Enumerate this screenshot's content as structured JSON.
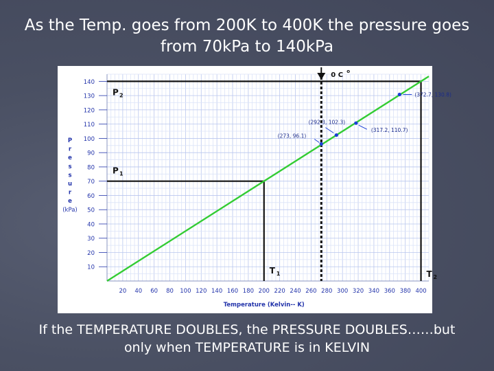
{
  "slide": {
    "title_line1": "As the Temp. goes from 200K to 400K the pressure goes",
    "title_line2": "from 70kPa to 140kPa",
    "caption_line1": "If the TEMPERATURE DOUBLES, the PRESSURE DOUBLES……but",
    "caption_line2": "only when TEMPERATURE is in KELVIN"
  },
  "chart_data": {
    "type": "line",
    "xlabel": "Temperature (Kelvin-- K)",
    "ylabel_letters": [
      "P",
      "r",
      "e",
      "s",
      "s",
      "u",
      "r",
      "e"
    ],
    "ylabel_unit": "(kPa)",
    "x_ticks": [
      20,
      40,
      60,
      80,
      100,
      120,
      140,
      160,
      180,
      200,
      220,
      240,
      260,
      280,
      300,
      320,
      340,
      360,
      380,
      400
    ],
    "y_ticks": [
      10,
      20,
      30,
      40,
      50,
      60,
      70,
      80,
      90,
      100,
      110,
      120,
      130,
      140
    ],
    "xlim": [
      0,
      410
    ],
    "ylim": [
      0,
      145
    ],
    "grid": true,
    "line_color": "#33cc33",
    "series": [
      {
        "x": [
          0,
          410
        ],
        "y": [
          0,
          143.5
        ]
      }
    ],
    "points": [
      {
        "x": 273,
        "y": 96.1,
        "label": "(273, 96.1)"
      },
      {
        "x": 292.3,
        "y": 102.3,
        "label": "(292.3, 102.3)"
      },
      {
        "x": 317.2,
        "y": 110.7,
        "label": "(317.2, 110.7)"
      },
      {
        "x": 372.7,
        "y": 130.8,
        "label": "(372.7, 130.8)"
      }
    ],
    "annotations": {
      "p1": {
        "y": 70,
        "label": "P",
        "sub": "1"
      },
      "p2": {
        "y": 140,
        "label": "P",
        "sub": "2"
      },
      "t1": {
        "x": 200,
        "label": "T",
        "sub": "1"
      },
      "t2": {
        "x": 400,
        "label": "T",
        "sub": "2"
      },
      "zero_c": {
        "x": 273,
        "label": "0 C",
        "sup": "o"
      }
    },
    "marker_color": "#1a3fd6",
    "label_color": "#1a2a8a"
  }
}
